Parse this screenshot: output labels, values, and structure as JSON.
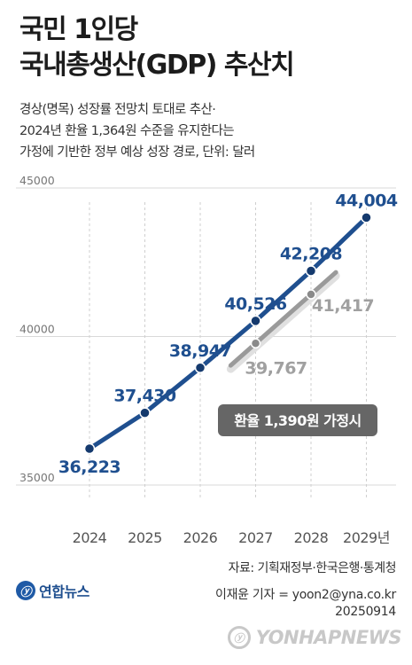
{
  "header": {
    "title_lines": [
      "국민 1인당",
      "국내총생산(GDP) 추산치"
    ],
    "subtitle_lines": [
      "경상(명목) 성장률 전망치 토대로 추산·",
      "2024년 환율 1,364원 수준을 유지한다는",
      "가정에 기반한 정부 예상 성장 경로, 단위: 달러"
    ]
  },
  "chart_data": {
    "type": "line",
    "x": [
      "2024",
      "2025",
      "2026",
      "2027",
      "2028",
      "2029년"
    ],
    "y_ticks": [
      "45000",
      "40000",
      "35000"
    ],
    "ylim": [
      35000,
      45000
    ],
    "series": [
      {
        "values": [
          36223,
          37430,
          38947,
          40526,
          42208,
          44004
        ],
        "labels": [
          "36,223",
          "37,430",
          "38,947",
          "40,526",
          "42,208",
          "44,004"
        ],
        "color": "#1f4f8f"
      },
      {
        "name": "환율 1,390원 가정시",
        "x": [
          "2027",
          "2028"
        ],
        "values": [
          39767,
          41417
        ],
        "labels": [
          "39,767",
          "41,417"
        ],
        "color": "#9a9a9a"
      }
    ],
    "grid": "horizontal",
    "annotation_color": "#666666"
  },
  "footer": {
    "source": "자료: 기획재정부·한국은행·통계청",
    "credit_line1": "이재윤 기자 = yoon2@yna.co.kr",
    "credit_line2": "20250914",
    "logo_text": "연합뉴스",
    "logo_mark": "ⓨ",
    "watermark_text": "YONHAPNEWS"
  }
}
